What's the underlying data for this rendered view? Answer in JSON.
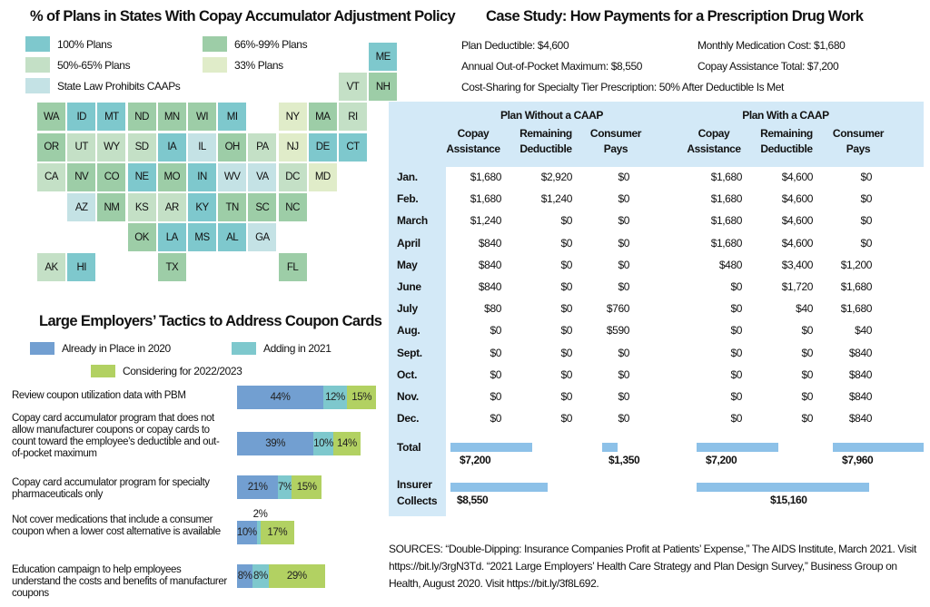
{
  "map": {
    "title": "% of Plans in States With Copay Accumulator Adjustment Policy",
    "legend": [
      {
        "key": "p100",
        "label": "100% Plans",
        "color": "#7ec8cd"
      },
      {
        "key": "p66",
        "label": "66%-99% Plans",
        "color": "#9dcda7"
      },
      {
        "key": "p50",
        "label": "50%-65% Plans",
        "color": "#c4e0c6"
      },
      {
        "key": "p33",
        "label": "33% Plans",
        "color": "#e0ecc9"
      },
      {
        "key": "prohibit",
        "label": "State Law Prohibits CAAPs",
        "color": "#c4e2e5"
      }
    ],
    "states": [
      {
        "abbr": "ME",
        "row": 0,
        "col": 11,
        "cat": "p100"
      },
      {
        "abbr": "VT",
        "row": 1,
        "col": 10,
        "cat": "p50"
      },
      {
        "abbr": "NH",
        "row": 1,
        "col": 11,
        "cat": "p66"
      },
      {
        "abbr": "WA",
        "row": 2,
        "col": 0,
        "cat": "p66"
      },
      {
        "abbr": "ID",
        "row": 2,
        "col": 1,
        "cat": "p100"
      },
      {
        "abbr": "MT",
        "row": 2,
        "col": 2,
        "cat": "p100"
      },
      {
        "abbr": "ND",
        "row": 2,
        "col": 3,
        "cat": "p66"
      },
      {
        "abbr": "MN",
        "row": 2,
        "col": 4,
        "cat": "p66"
      },
      {
        "abbr": "WI",
        "row": 2,
        "col": 5,
        "cat": "p66"
      },
      {
        "abbr": "MI",
        "row": 2,
        "col": 6,
        "cat": "p100"
      },
      {
        "abbr": "NY",
        "row": 2,
        "col": 8,
        "cat": "p33"
      },
      {
        "abbr": "MA",
        "row": 2,
        "col": 9,
        "cat": "p66"
      },
      {
        "abbr": "RI",
        "row": 2,
        "col": 10,
        "cat": "p50"
      },
      {
        "abbr": "OR",
        "row": 3,
        "col": 0,
        "cat": "p66"
      },
      {
        "abbr": "UT",
        "row": 3,
        "col": 1,
        "cat": "p50"
      },
      {
        "abbr": "WY",
        "row": 3,
        "col": 2,
        "cat": "p50"
      },
      {
        "abbr": "SD",
        "row": 3,
        "col": 3,
        "cat": "p50"
      },
      {
        "abbr": "IA",
        "row": 3,
        "col": 4,
        "cat": "p100"
      },
      {
        "abbr": "IL",
        "row": 3,
        "col": 5,
        "cat": "prohibit"
      },
      {
        "abbr": "OH",
        "row": 3,
        "col": 6,
        "cat": "p66"
      },
      {
        "abbr": "PA",
        "row": 3,
        "col": 7,
        "cat": "p50"
      },
      {
        "abbr": "NJ",
        "row": 3,
        "col": 8,
        "cat": "p33"
      },
      {
        "abbr": "DE",
        "row": 3,
        "col": 9,
        "cat": "p100"
      },
      {
        "abbr": "CT",
        "row": 3,
        "col": 10,
        "cat": "p100"
      },
      {
        "abbr": "CA",
        "row": 4,
        "col": 0,
        "cat": "p50"
      },
      {
        "abbr": "NV",
        "row": 4,
        "col": 1,
        "cat": "p66"
      },
      {
        "abbr": "CO",
        "row": 4,
        "col": 2,
        "cat": "p66"
      },
      {
        "abbr": "NE",
        "row": 4,
        "col": 3,
        "cat": "p100"
      },
      {
        "abbr": "MO",
        "row": 4,
        "col": 4,
        "cat": "p66"
      },
      {
        "abbr": "IN",
        "row": 4,
        "col": 5,
        "cat": "p100"
      },
      {
        "abbr": "WV",
        "row": 4,
        "col": 6,
        "cat": "prohibit"
      },
      {
        "abbr": "VA",
        "row": 4,
        "col": 7,
        "cat": "prohibit"
      },
      {
        "abbr": "DC",
        "row": 4,
        "col": 8,
        "cat": "p50"
      },
      {
        "abbr": "MD",
        "row": 4,
        "col": 9,
        "cat": "p33"
      },
      {
        "abbr": "AZ",
        "row": 5,
        "col": 1,
        "cat": "prohibit"
      },
      {
        "abbr": "NM",
        "row": 5,
        "col": 2,
        "cat": "p66"
      },
      {
        "abbr": "KS",
        "row": 5,
        "col": 3,
        "cat": "p50"
      },
      {
        "abbr": "AR",
        "row": 5,
        "col": 4,
        "cat": "p50"
      },
      {
        "abbr": "KY",
        "row": 5,
        "col": 5,
        "cat": "p100"
      },
      {
        "abbr": "TN",
        "row": 5,
        "col": 6,
        "cat": "p66"
      },
      {
        "abbr": "SC",
        "row": 5,
        "col": 7,
        "cat": "p66"
      },
      {
        "abbr": "NC",
        "row": 5,
        "col": 8,
        "cat": "p66"
      },
      {
        "abbr": "OK",
        "row": 6,
        "col": 3,
        "cat": "p66"
      },
      {
        "abbr": "LA",
        "row": 6,
        "col": 4,
        "cat": "p100"
      },
      {
        "abbr": "MS",
        "row": 6,
        "col": 5,
        "cat": "p100"
      },
      {
        "abbr": "AL",
        "row": 6,
        "col": 6,
        "cat": "p100"
      },
      {
        "abbr": "GA",
        "row": 6,
        "col": 7,
        "cat": "prohibit"
      },
      {
        "abbr": "AK",
        "row": 7,
        "col": 0,
        "cat": "p50"
      },
      {
        "abbr": "HI",
        "row": 7,
        "col": 1,
        "cat": "p100"
      },
      {
        "abbr": "TX",
        "row": 7,
        "col": 4,
        "cat": "p66"
      },
      {
        "abbr": "FL",
        "row": 7,
        "col": 8,
        "cat": "p66"
      }
    ]
  },
  "employers": {
    "title": "Large Employers’ Tactics to Address Coupon Cards",
    "legend": [
      {
        "label": "Already in Place in 2020",
        "color": "#729fd1"
      },
      {
        "label": "Adding in 2021",
        "color": "#7ec8cd"
      },
      {
        "label": "Considering for 2022/2023",
        "color": "#b2d162"
      }
    ]
  },
  "case_study": {
    "title": "Case Study: How Payments for a Prescription Drug Work",
    "facts": {
      "deductible": "Plan Deductible: $4,600",
      "oop_max": "Annual Out-of-Pocket Maximum: $8,550",
      "monthly_cost": "Monthly Medication Cost: $1,680",
      "copay_total": "Copay Assistance Total: $7,200",
      "cost_sharing": "Cost-Sharing for Specialty Tier Prescription: 50% After Deductible Is Met"
    },
    "groups": [
      "Plan Without a CAAP",
      "Plan With a CAAP"
    ],
    "columns": [
      "Copay\nAssistance",
      "Remaining\nDeductible",
      "Consumer\nPays"
    ],
    "months": [
      "Jan.",
      "Feb.",
      "March",
      "April",
      "May",
      "June",
      "July",
      "Aug.",
      "Sept.",
      "Oct.",
      "Nov.",
      "Dec."
    ],
    "without_caap": [
      [
        "$1,680",
        "$2,920",
        "$0"
      ],
      [
        "$1,680",
        "$1,240",
        "$0"
      ],
      [
        "$1,240",
        "$0",
        "$0"
      ],
      [
        "$840",
        "$0",
        "$0"
      ],
      [
        "$840",
        "$0",
        "$0"
      ],
      [
        "$840",
        "$0",
        "$0"
      ],
      [
        "$80",
        "$0",
        "$760"
      ],
      [
        "$0",
        "$0",
        "$590"
      ],
      [
        "$0",
        "$0",
        "$0"
      ],
      [
        "$0",
        "$0",
        "$0"
      ],
      [
        "$0",
        "$0",
        "$0"
      ],
      [
        "$0",
        "$0",
        "$0"
      ]
    ],
    "with_caap": [
      [
        "$1,680",
        "$4,600",
        "$0"
      ],
      [
        "$1,680",
        "$4,600",
        "$0"
      ],
      [
        "$1,680",
        "$4,600",
        "$0"
      ],
      [
        "$1,680",
        "$4,600",
        "$0"
      ],
      [
        "$480",
        "$3,400",
        "$1,200"
      ],
      [
        "$0",
        "$1,720",
        "$1,680"
      ],
      [
        "$0",
        "$40",
        "$1,680"
      ],
      [
        "$0",
        "$0",
        "$40"
      ],
      [
        "$0",
        "$0",
        "$840"
      ],
      [
        "$0",
        "$0",
        "$840"
      ],
      [
        "$0",
        "$0",
        "$840"
      ],
      [
        "$0",
        "$0",
        "$840"
      ]
    ],
    "total_label": "Total",
    "insurer_label": "Insurer\nCollects",
    "totals": {
      "without_copay": {
        "label": "$7,200",
        "value": 7200
      },
      "without_consumer": {
        "label": "$1,350",
        "value": 1350
      },
      "with_copay": {
        "label": "$7,200",
        "value": 7200
      },
      "with_consumer": {
        "label": "$7,960",
        "value": 7960
      },
      "without_insurer": {
        "label": "$8,550",
        "value": 8550
      },
      "with_insurer": {
        "label": "$15,160",
        "value": 15160
      }
    },
    "bar_color": "#8dc1e8"
  },
  "sources": "SOURCES: “Double-Dipping: Insurance Companies Profit at Patients’ Expense,” The AIDS Institute, March 2021. Visit https://bit.ly/3rgN3Td. “2021 Large Employers’ Health Care Strategy and Plan Design Survey,” Business Group on Health, August 2020. Visit https://bit.ly/3f8L692.",
  "chart_data": [
    {
      "type": "heatmap",
      "title": "% of Plans in States With Copay Accumulator Adjustment Policy",
      "categories": [
        "100% Plans",
        "66%-99% Plans",
        "50%-65% Plans",
        "33% Plans",
        "State Law Prohibits CAAPs"
      ],
      "values": {
        "100% Plans": [
          "ME",
          "ID",
          "MT",
          "MI",
          "IA",
          "DE",
          "CT",
          "NE",
          "IN",
          "KY",
          "LA",
          "MS",
          "AL",
          "HI"
        ],
        "66%-99% Plans": [
          "NH",
          "WA",
          "ND",
          "MN",
          "WI",
          "MA",
          "OR",
          "OH",
          "NV",
          "CO",
          "MO",
          "NM",
          "TN",
          "SC",
          "NC",
          "OK",
          "TX",
          "FL"
        ],
        "50%-65% Plans": [
          "VT",
          "RI",
          "UT",
          "WY",
          "SD",
          "PA",
          "CA",
          "DC",
          "KS",
          "AR",
          "AK"
        ],
        "33% Plans": [
          "NY",
          "NJ",
          "MD"
        ],
        "State Law Prohibits CAAPs": [
          "IL",
          "WV",
          "VA",
          "AZ",
          "GA"
        ]
      },
      "legend": "top"
    },
    {
      "type": "bar",
      "stacked": true,
      "orientation": "horizontal",
      "title": "Large Employers’ Tactics to Address Coupon Cards",
      "categories": [
        "Review coupon utilization data with PBM",
        "Copay card accumulator program that does not allow manufacturer coupons or copay cards to count toward the employee’s deductible and out-of-pocket maximum",
        "Copay card accumulator program for specialty pharmaceuticals only",
        "Not cover medications that include a consumer coupon when a lower cost alternative is available",
        "Education campaign to help employees understand the costs and benefits of manufacturer coupons"
      ],
      "series": [
        {
          "name": "Already in Place in 2020",
          "values": [
            44,
            39,
            21,
            10,
            8
          ]
        },
        {
          "name": "Adding in 2021",
          "values": [
            12,
            10,
            7,
            2,
            8
          ]
        },
        {
          "name": "Considering for 2022/2023",
          "values": [
            15,
            14,
            15,
            17,
            29
          ]
        }
      ],
      "unit": "%",
      "legend": "top"
    },
    {
      "type": "table",
      "title": "Case Study: How Payments for a Prescription Drug Work",
      "totals": {
        "Plan Without a CAAP": {
          "Copay Assistance": 7200,
          "Consumer Pays": 1350,
          "Insurer Collects": 8550
        },
        "Plan With a CAAP": {
          "Copay Assistance": 7200,
          "Consumer Pays": 7960,
          "Insurer Collects": 15160
        }
      }
    }
  ]
}
